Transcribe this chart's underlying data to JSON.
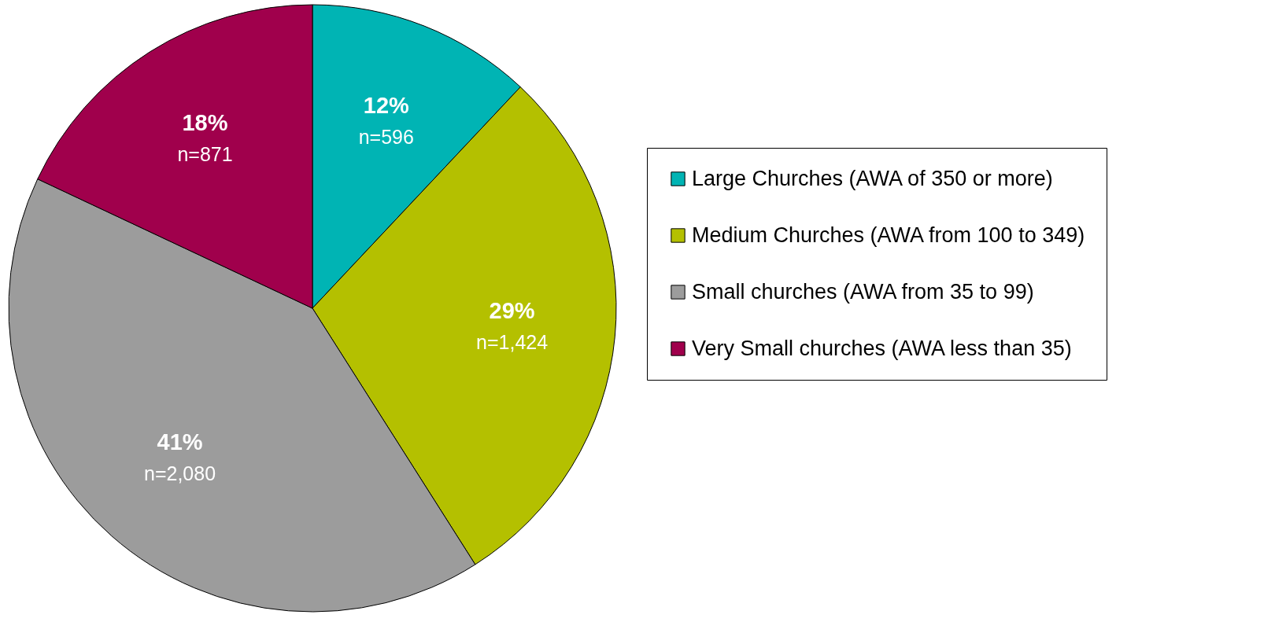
{
  "chart_data": {
    "type": "pie",
    "categories": [
      "Large Churches (AWA of 350 or more)",
      "Medium Churches (AWA from 100 to 349)",
      "Small churches (AWA from  35 to 99)",
      "Very Small churches (AWA less than 35)"
    ],
    "values": [
      12,
      29,
      41,
      18
    ],
    "colors": [
      "#00b4b4",
      "#b4c000",
      "#9c9c9c",
      "#a0004c"
    ],
    "value_labels": [
      "12%\nn=596",
      "29%\nn=1,424",
      "41%\nn=2,080",
      "18%\nn=871"
    ],
    "legend": "right"
  }
}
